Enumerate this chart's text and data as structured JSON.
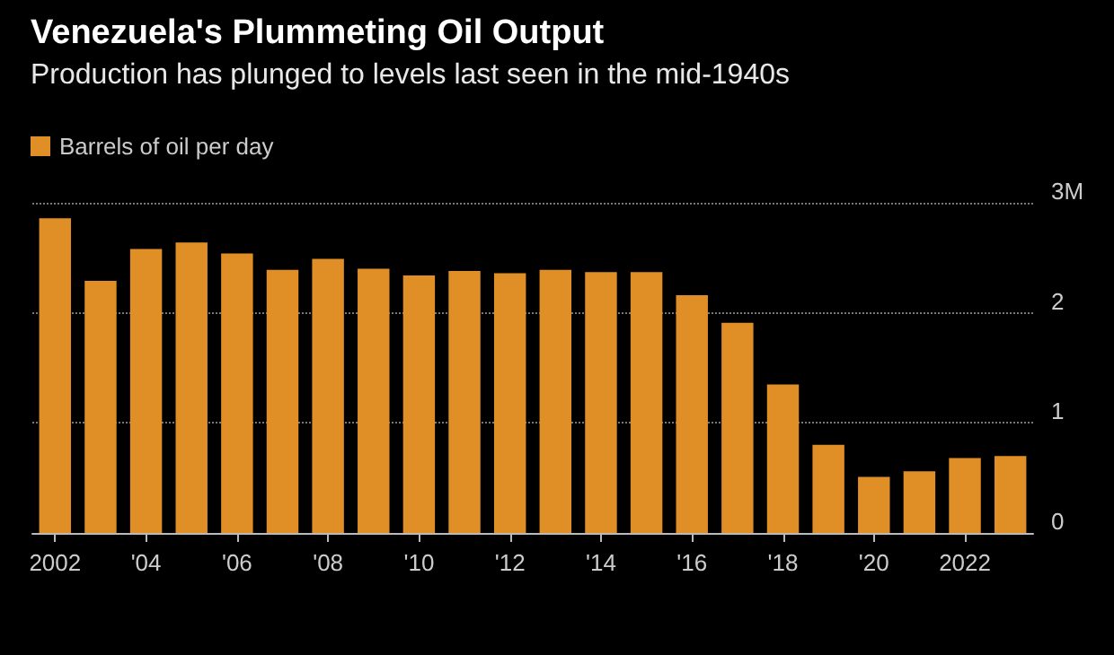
{
  "chart_data": {
    "type": "bar",
    "title": "Venezuela's Plummeting Oil Output",
    "subtitle": "Production has plunged to levels last seen in the mid-1940s",
    "categories": [
      "2002",
      null,
      "'04",
      null,
      "'06",
      null,
      "'08",
      null,
      "'10",
      null,
      "'12",
      null,
      "'14",
      null,
      "'16",
      null,
      "'18",
      null,
      "'20",
      null,
      "2022",
      null
    ],
    "series": [
      {
        "name": "Barrels of oil per day",
        "color": "#e08f26",
        "values": [
          2.86,
          2.29,
          2.58,
          2.64,
          2.54,
          2.39,
          2.49,
          2.4,
          2.34,
          2.38,
          2.36,
          2.39,
          2.37,
          2.37,
          2.16,
          1.91,
          1.35,
          0.8,
          0.51,
          0.56,
          0.68,
          0.7
        ]
      }
    ],
    "ylim": [
      0,
      3
    ],
    "yticks": [
      0,
      1,
      2,
      {
        "value": 3,
        "label": "3M"
      }
    ],
    "grid": "y",
    "legend": "top left"
  }
}
